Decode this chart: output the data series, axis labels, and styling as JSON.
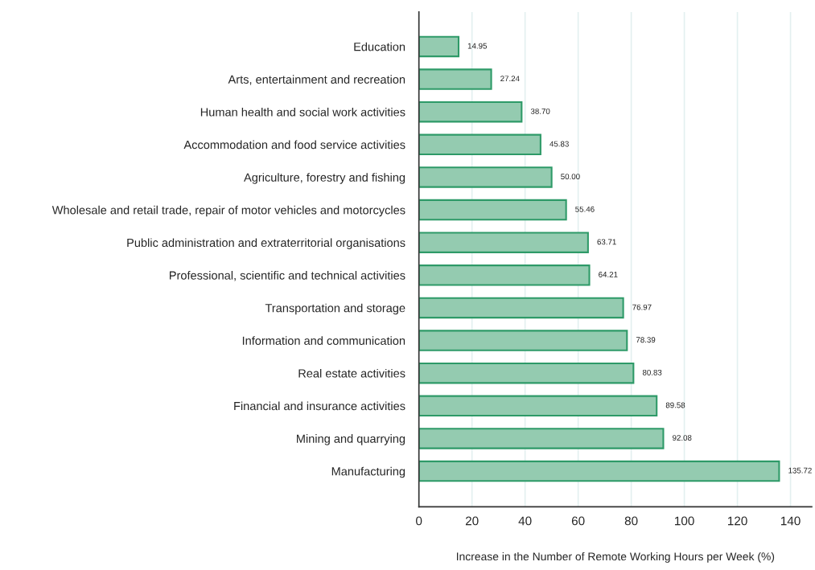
{
  "chart_data": {
    "type": "bar",
    "orientation": "horizontal",
    "xlabel": "Increase in the Number of Remote Working Hours per Week (%)",
    "categories": [
      "Education",
      "Arts, entertainment and recreation",
      "Human health and social work activities",
      "Accommodation and food service activities",
      "Agriculture, forestry and fishing",
      "Wholesale and retail trade, repair of motor vehicles and motorcycles",
      "Public administration and extraterritorial organisations",
      "Professional, scientific and technical activities",
      "Transportation and storage",
      "Information and communication",
      "Real estate activities",
      "Financial and insurance activities",
      "Mining and quarrying",
      "Manufacturing"
    ],
    "series": [
      {
        "color": "#94cbb0",
        "values": [
          14.95,
          27.24,
          38.7,
          45.83,
          50.0,
          55.46,
          63.71,
          64.21,
          76.97,
          78.39,
          80.83,
          89.58,
          92.08,
          135.72
        ],
        "value_labels": [
          "14.95",
          "27.24",
          "38.70",
          "45.83",
          "50.00",
          "55.46",
          "63.71",
          "64.21",
          "76.97",
          "78.39",
          "80.83",
          "89.58",
          "92.08",
          "135.72"
        ]
      }
    ],
    "xlim": [
      0,
      148
    ],
    "xticks": [
      0,
      20,
      40,
      60,
      80,
      100,
      120,
      140
    ],
    "grid": "x"
  }
}
